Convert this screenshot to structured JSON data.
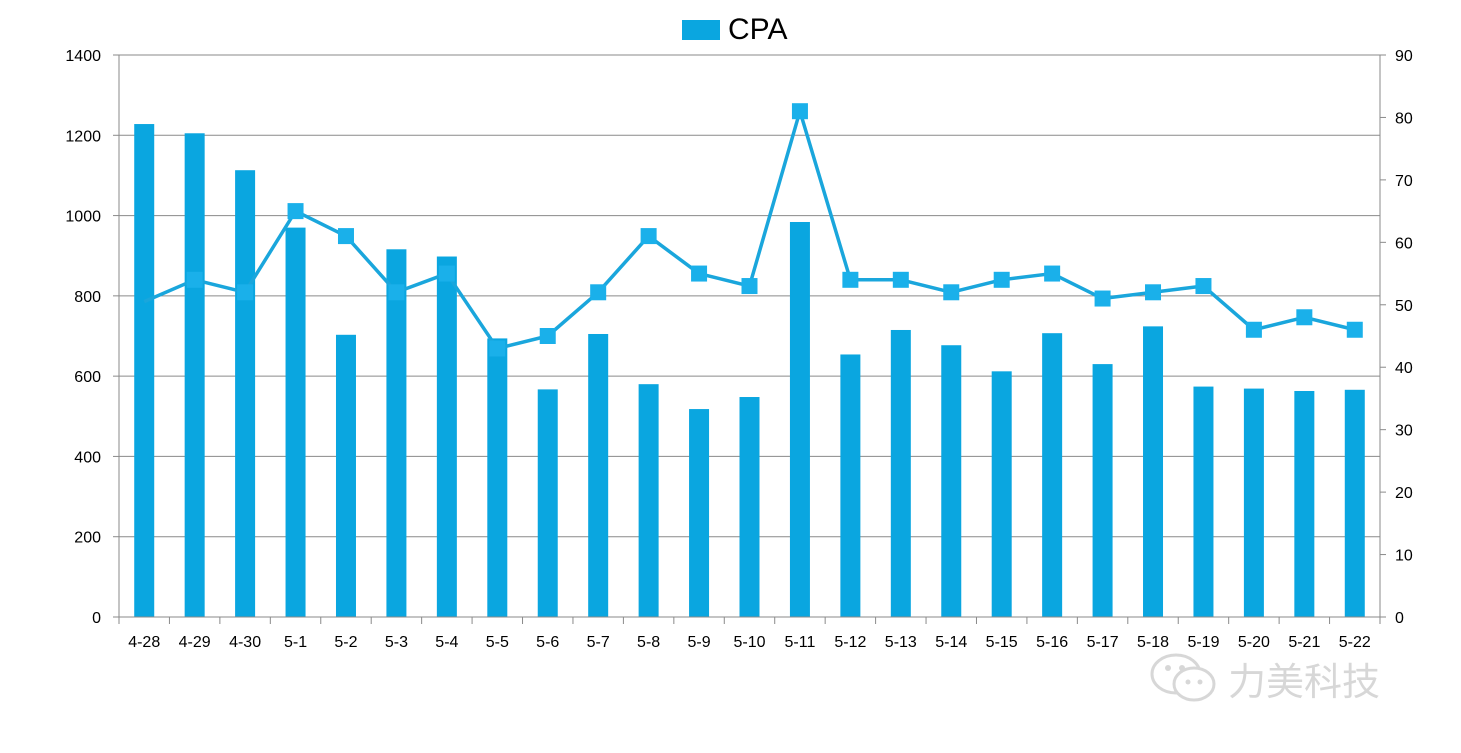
{
  "chart_data": {
    "type": "bar+line",
    "categories": [
      "4-28",
      "4-29",
      "4-30",
      "5-1",
      "5-2",
      "5-3",
      "5-4",
      "5-5",
      "5-6",
      "5-7",
      "5-8",
      "5-9",
      "5-10",
      "5-11",
      "5-12",
      "5-13",
      "5-14",
      "5-15",
      "5-16",
      "5-17",
      "5-18",
      "5-19",
      "5-20",
      "5-21",
      "5-22"
    ],
    "series": [
      {
        "type": "bar",
        "name": "CPA",
        "axis": "left",
        "values": [
          1228,
          1205,
          1113,
          970,
          703,
          916,
          898,
          694,
          567,
          705,
          580,
          518,
          548,
          984,
          654,
          715,
          677,
          612,
          707,
          630,
          724,
          574,
          569,
          563,
          566
        ]
      },
      {
        "type": "line",
        "axis": "right",
        "values": [
          50.5,
          54,
          52,
          65,
          61,
          52,
          55,
          43,
          45,
          52,
          61,
          55,
          53,
          81,
          54,
          54,
          52,
          54,
          55,
          51,
          52,
          53,
          46,
          48,
          46
        ]
      }
    ],
    "y_left": {
      "min": 0,
      "max": 1400,
      "ticks": [
        0,
        200,
        400,
        600,
        800,
        1000,
        1200,
        1400
      ]
    },
    "y_right": {
      "min": 0,
      "max": 90,
      "ticks": [
        0,
        10,
        20,
        30,
        40,
        50,
        60,
        70,
        80,
        90
      ]
    },
    "grid": true,
    "legend": "top-center",
    "colors": {
      "bar": "#0aa6e0",
      "line": "#1aa6dc",
      "marker": "#1ab0ea",
      "grid": "#8a8a8a",
      "axis": "#8a8a8a"
    }
  },
  "legend": {
    "label": "CPA"
  },
  "watermark": {
    "text": "力美科技"
  }
}
